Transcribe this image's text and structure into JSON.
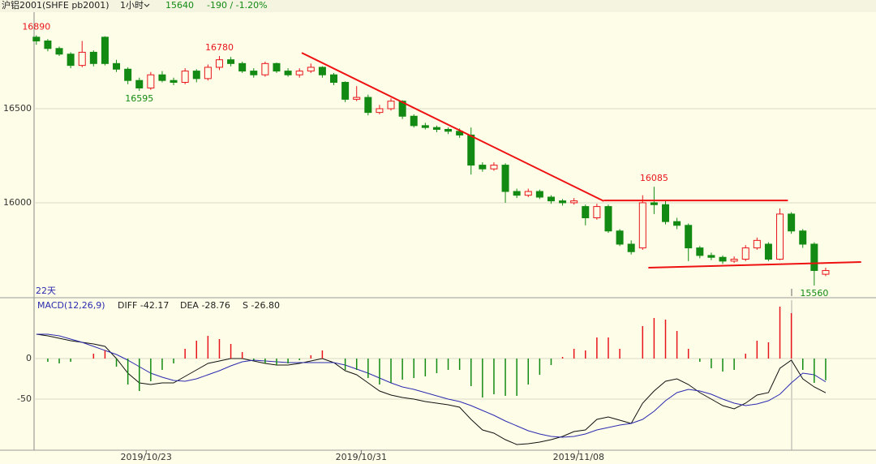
{
  "header": {
    "symbol": "沪铝2001(SHFE pb2001)",
    "period": "1小时",
    "price": 15640,
    "change": "-190 / -1.20%"
  },
  "chart_data": [
    {
      "type": "candlestick",
      "span_label": "22天",
      "open": [
        16880,
        16860,
        16820,
        16790,
        16730,
        16800,
        16880,
        16740,
        16710,
        16650,
        16610,
        16680,
        16650,
        16640,
        16700,
        16660,
        16720,
        16760,
        16740,
        16700,
        16680,
        16740,
        16700,
        16680,
        16700,
        16720,
        16680,
        16640,
        16550,
        16560,
        16480,
        16500,
        16540,
        16460,
        16410,
        16400,
        16390,
        16380,
        16360,
        16200,
        16180,
        16200,
        16060,
        16040,
        16060,
        16030,
        16010,
        16000,
        15980,
        15920,
        15980,
        15850,
        15780,
        15760,
        16000,
        15990,
        15900,
        15880,
        15760,
        15720,
        15710,
        15690,
        15700,
        15760,
        15780,
        15700,
        15940,
        15850,
        15780,
        15620
      ],
      "high": [
        16890,
        16870,
        16830,
        16800,
        16860,
        16810,
        16885,
        16760,
        16720,
        16665,
        16695,
        16700,
        16665,
        16715,
        16710,
        16735,
        16780,
        16775,
        16750,
        16715,
        16750,
        16745,
        16715,
        16715,
        16740,
        16725,
        16690,
        16645,
        16620,
        16575,
        16520,
        16555,
        16545,
        16470,
        16425,
        16410,
        16400,
        16395,
        16400,
        16215,
        16215,
        16210,
        16075,
        16075,
        16070,
        16040,
        16020,
        16025,
        15990,
        15995,
        15990,
        15860,
        15800,
        16040,
        16085,
        16010,
        15920,
        15890,
        15770,
        15735,
        15720,
        15715,
        15775,
        15815,
        15790,
        15970,
        15950,
        15860,
        15790,
        15655
      ],
      "low": [
        16840,
        16805,
        16780,
        16715,
        16720,
        16725,
        16730,
        16695,
        16630,
        16595,
        16600,
        16640,
        16625,
        16630,
        16640,
        16650,
        16705,
        16725,
        16690,
        16665,
        16670,
        16690,
        16670,
        16665,
        16690,
        16665,
        16625,
        16535,
        16540,
        16465,
        16470,
        16490,
        16445,
        16400,
        16390,
        16375,
        16365,
        16345,
        16150,
        16165,
        16170,
        16000,
        16025,
        16030,
        16020,
        15995,
        15985,
        15990,
        15880,
        15910,
        15840,
        15770,
        15725,
        15750,
        15940,
        15885,
        15860,
        15690,
        15705,
        15695,
        15675,
        15680,
        15690,
        15750,
        15690,
        15695,
        15835,
        15760,
        15560,
        15610
      ],
      "close": [
        16860,
        16820,
        16790,
        16730,
        16800,
        16740,
        16740,
        16710,
        16650,
        16610,
        16680,
        16650,
        16640,
        16700,
        16660,
        16720,
        16760,
        16740,
        16700,
        16680,
        16740,
        16700,
        16680,
        16700,
        16720,
        16680,
        16640,
        16550,
        16560,
        16480,
        16500,
        16540,
        16460,
        16410,
        16400,
        16390,
        16380,
        16360,
        16200,
        16180,
        16200,
        16060,
        16040,
        16060,
        16030,
        16010,
        16000,
        16010,
        15920,
        15980,
        15850,
        15780,
        15740,
        16000,
        15990,
        15900,
        15880,
        15760,
        15720,
        15710,
        15690,
        15700,
        15760,
        15800,
        15700,
        15940,
        15850,
        15780,
        15640,
        15640
      ],
      "up_color": "#e8141b",
      "down_color": "#138a13",
      "xlim": [
        -0.2,
        73.4
      ],
      "ylim": [
        15504,
        17013
      ],
      "yticks": [
        16000,
        16500
      ],
      "grid": true,
      "xticks": [
        {
          "value": 9.6,
          "label": "2019/10/23"
        },
        {
          "value": 28.4,
          "label": "2019/10/31"
        },
        {
          "value": 47.4,
          "label": "2019/11/08"
        }
      ],
      "annotations": [
        {
          "x": 0,
          "value": 16890
        },
        {
          "x": 16,
          "value": 16780
        },
        {
          "x": 9,
          "value": 16595
        },
        {
          "x": 54,
          "value": 16085
        },
        {
          "x": 68,
          "value": 15560
        }
      ],
      "trendlines": [
        {
          "x": [
            23.2,
            49.6
          ],
          "y": [
            16797,
            16009
          ]
        },
        {
          "x": [
            49.6,
            65.7
          ],
          "y": [
            16012,
            16012
          ]
        },
        {
          "x": [
            53.5,
            72.1
          ],
          "y": [
            15655,
            15685
          ]
        }
      ],
      "trendline_color": "#ee1111"
    },
    {
      "type": "macd",
      "title": "MACD(12,26,9)",
      "legend": [
        "DIFF -42.17",
        "DEA -28.76",
        "S -26.80"
      ],
      "series": [
        {
          "name": "DIFF",
          "color": "#111111",
          "values": [
            30,
            28,
            25,
            22,
            20,
            18,
            15,
            0,
            -18,
            -30,
            -32,
            -30,
            -30,
            -22,
            -14,
            -6,
            -3,
            0,
            0,
            -3,
            -6,
            -8,
            -8,
            -6,
            -3,
            0,
            -5,
            -15,
            -20,
            -30,
            -40,
            -45,
            -48,
            -50,
            -53,
            -55,
            -57,
            -60,
            -75,
            -88,
            -92,
            -100,
            -106,
            -105,
            -103,
            -100,
            -96,
            -90,
            -88,
            -75,
            -72,
            -76,
            -80,
            -55,
            -40,
            -28,
            -25,
            -32,
            -42,
            -50,
            -58,
            -62,
            -55,
            -45,
            -42,
            -12,
            -2,
            -25,
            -35,
            -42.17
          ]
        },
        {
          "name": "DEA",
          "color": "#2a2ab0",
          "values": [
            30,
            30,
            28,
            24,
            20,
            15,
            10,
            5,
            -2,
            -10,
            -18,
            -23,
            -27,
            -28,
            -25,
            -20,
            -15,
            -9,
            -4,
            -2,
            -3,
            -4,
            -5,
            -5,
            -5,
            -5,
            -5,
            -8,
            -13,
            -18,
            -24,
            -30,
            -35,
            -38,
            -42,
            -46,
            -50,
            -53,
            -58,
            -64,
            -70,
            -77,
            -83,
            -89,
            -93,
            -96,
            -97,
            -96,
            -93,
            -88,
            -85,
            -82,
            -80,
            -75,
            -65,
            -52,
            -42,
            -38,
            -40,
            -44,
            -50,
            -55,
            -58,
            -56,
            -52,
            -44,
            -30,
            -18,
            -20,
            -28.76
          ]
        },
        {
          "name": "S",
          "values": [
            0,
            -4,
            -6,
            -4,
            0,
            6,
            10,
            -10,
            -32,
            -40,
            -28,
            -14,
            -6,
            12,
            22,
            28,
            24,
            18,
            8,
            -2,
            -6,
            -8,
            -6,
            -2,
            4,
            10,
            0,
            -14,
            -14,
            -24,
            -32,
            -30,
            -26,
            -24,
            -22,
            -18,
            -14,
            -14,
            -34,
            -48,
            -44,
            -46,
            -46,
            -32,
            -20,
            -8,
            2,
            12,
            10,
            26,
            26,
            12,
            0,
            40,
            50,
            48,
            34,
            12,
            -4,
            -12,
            -16,
            -14,
            6,
            22,
            20,
            64,
            56,
            -14,
            -30,
            -26.8
          ]
        }
      ],
      "pos_color": "#e8141b",
      "neg_color": "#138a13",
      "ylim": [
        -113,
        72
      ],
      "yticks": [
        0,
        -50
      ]
    }
  ]
}
